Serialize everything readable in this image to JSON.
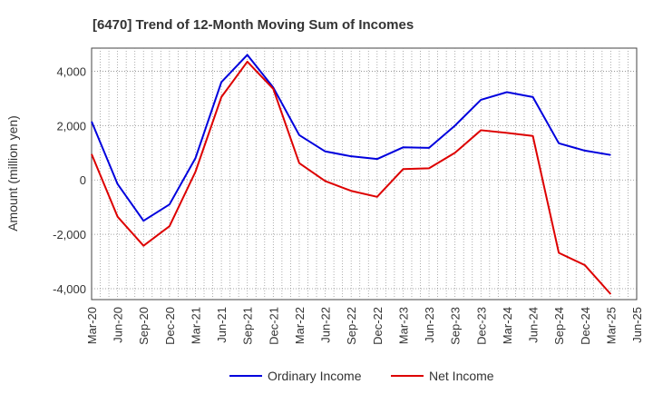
{
  "chart_data": {
    "type": "line",
    "title": "[6470]  Trend of 12-Month Moving Sum of Incomes",
    "ylabel": "Amount (million yen)",
    "xlabel": "",
    "x_tick_labels": [
      "Mar-20",
      "Jun-20",
      "Sep-20",
      "Dec-20",
      "Mar-21",
      "Jun-21",
      "Sep-21",
      "Dec-21",
      "Mar-22",
      "Jun-22",
      "Sep-22",
      "Dec-22",
      "Mar-23",
      "Jun-23",
      "Sep-23",
      "Dec-23",
      "Mar-24",
      "Jun-24",
      "Sep-24",
      "Dec-24",
      "Mar-25",
      "Jun-25"
    ],
    "x_months": [
      "2020-03",
      "2020-04",
      "2020-05",
      "2020-06",
      "2020-07",
      "2020-08",
      "2020-09",
      "2020-10",
      "2020-11",
      "2020-12",
      "2021-01",
      "2021-02",
      "2021-03",
      "2021-04",
      "2021-05",
      "2021-06",
      "2021-07",
      "2021-08",
      "2021-09",
      "2021-10",
      "2021-11",
      "2021-12",
      "2022-01",
      "2022-02",
      "2022-03",
      "2022-04",
      "2022-05",
      "2022-06",
      "2022-07",
      "2022-08",
      "2022-09",
      "2022-10",
      "2022-11",
      "2022-12",
      "2023-01",
      "2023-02",
      "2023-03",
      "2023-04",
      "2023-05",
      "2023-06",
      "2023-07",
      "2023-08",
      "2023-09",
      "2023-10",
      "2023-11",
      "2023-12",
      "2024-01",
      "2024-02",
      "2024-03",
      "2024-04",
      "2024-05",
      "2024-06",
      "2024-07",
      "2024-08",
      "2024-09",
      "2024-10",
      "2024-11",
      "2024-12",
      "2025-01",
      "2025-02",
      "2025-03",
      "2025-04",
      "2025-05",
      "2025-06"
    ],
    "y_ticks": [
      -4000,
      -2000,
      0,
      2000,
      4000
    ],
    "y_tick_labels": [
      "-4,000",
      "-2,000",
      "0",
      "2,000",
      "4,000"
    ],
    "ylim": [
      -4400,
      4850
    ],
    "grid": true,
    "legend_position": "bottom",
    "series": [
      {
        "name": "Ordinary Income",
        "color": "#0000dd",
        "points": [
          [
            "2020-03",
            2150
          ],
          [
            "2020-06",
            -150
          ],
          [
            "2020-09",
            -1500
          ],
          [
            "2020-12",
            -900
          ],
          [
            "2021-03",
            800
          ],
          [
            "2021-06",
            3600
          ],
          [
            "2021-09",
            4600
          ],
          [
            "2021-12",
            3400
          ],
          [
            "2022-03",
            1650
          ],
          [
            "2022-06",
            1050
          ],
          [
            "2022-09",
            870
          ],
          [
            "2022-12",
            770
          ],
          [
            "2023-03",
            1200
          ],
          [
            "2023-06",
            1180
          ],
          [
            "2023-09",
            2000
          ],
          [
            "2023-12",
            2950
          ],
          [
            "2024-03",
            3230
          ],
          [
            "2024-06",
            3050
          ],
          [
            "2024-09",
            1350
          ],
          [
            "2024-12",
            1080
          ],
          [
            "2025-03",
            920
          ]
        ]
      },
      {
        "name": "Net Income",
        "color": "#dd0000",
        "points": [
          [
            "2020-03",
            950
          ],
          [
            "2020-06",
            -1350
          ],
          [
            "2020-09",
            -2420
          ],
          [
            "2020-12",
            -1700
          ],
          [
            "2021-03",
            300
          ],
          [
            "2021-06",
            3050
          ],
          [
            "2021-09",
            4350
          ],
          [
            "2021-12",
            3350
          ],
          [
            "2022-03",
            620
          ],
          [
            "2022-06",
            -40
          ],
          [
            "2022-09",
            -400
          ],
          [
            "2022-12",
            -620
          ],
          [
            "2023-03",
            400
          ],
          [
            "2023-06",
            430
          ],
          [
            "2023-09",
            1000
          ],
          [
            "2023-12",
            1830
          ],
          [
            "2024-03",
            1730
          ],
          [
            "2024-06",
            1620
          ],
          [
            "2024-09",
            -2680
          ],
          [
            "2024-12",
            -3130
          ],
          [
            "2025-03",
            -4200
          ]
        ]
      }
    ]
  }
}
